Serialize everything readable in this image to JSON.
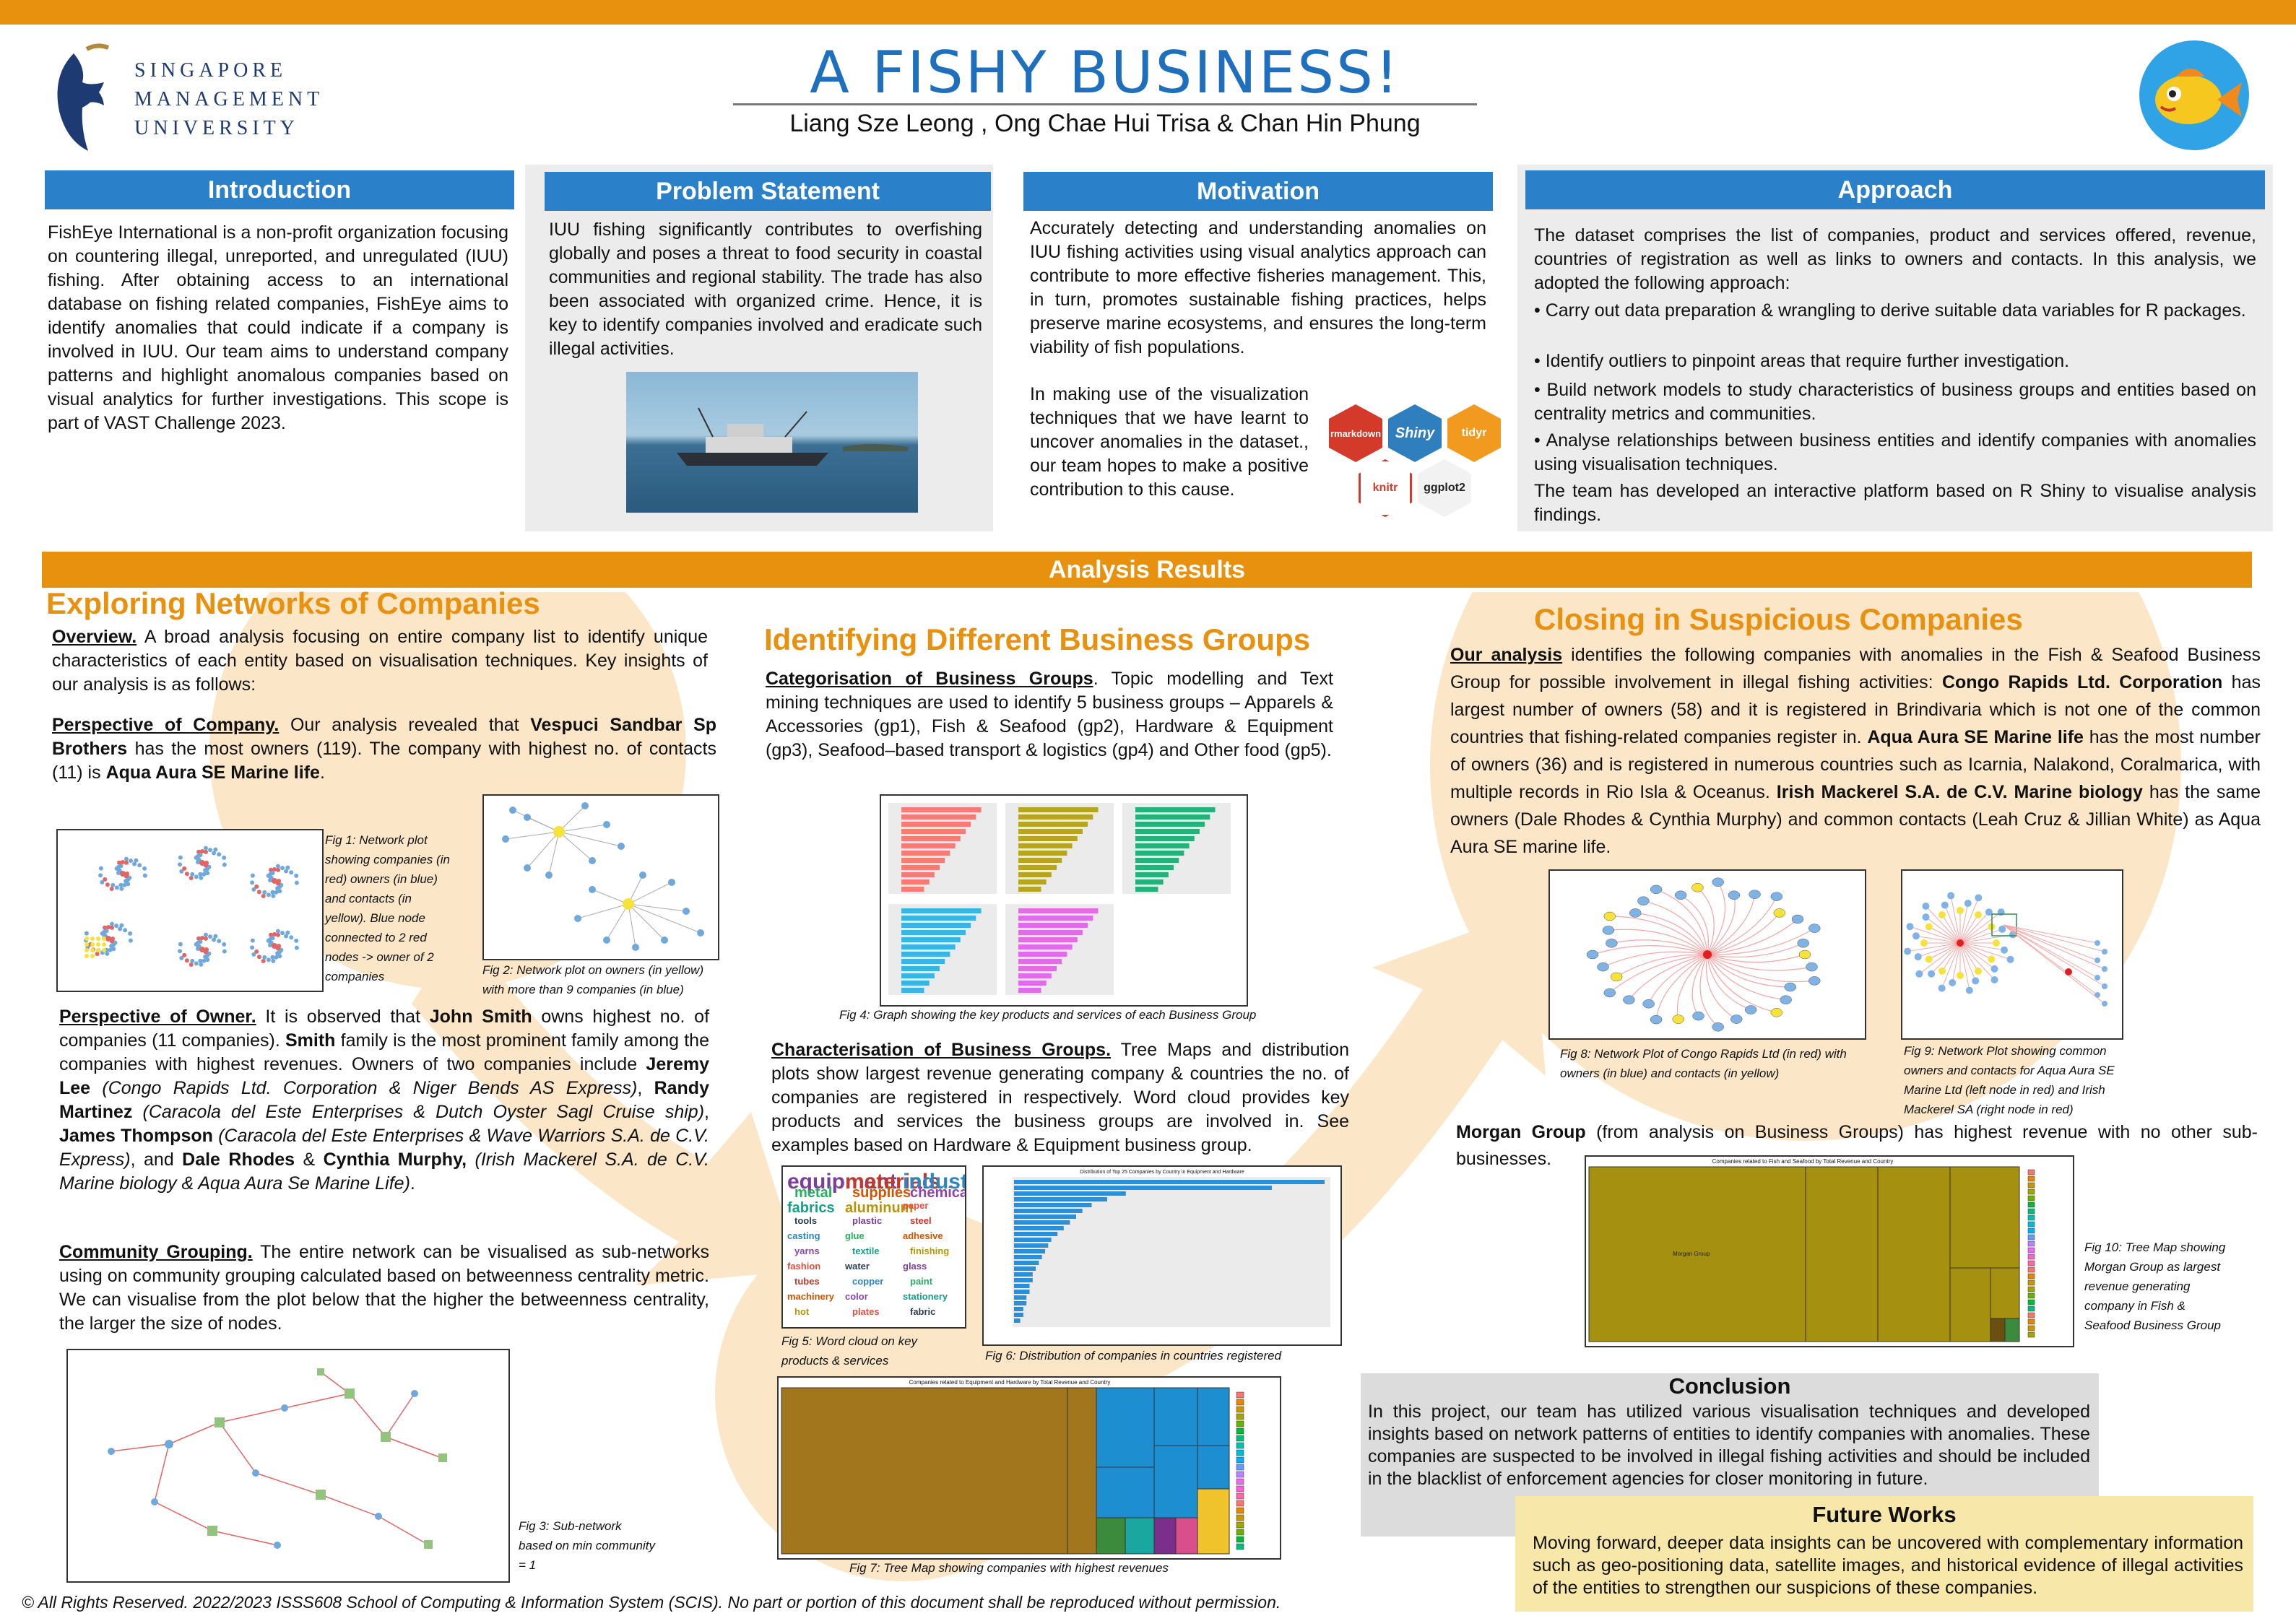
{
  "header": {
    "title": "A FISHY BUSINESS!",
    "authors": "Liang Sze Leong , Ong Chae Hui Trisa & Chan Hin Phung",
    "university_lines": [
      "SINGAPORE",
      "MANAGEMENT",
      "UNIVERSITY"
    ]
  },
  "introduction": {
    "heading": "Introduction",
    "text": "FishEye International is a non-profit organization focusing on countering illegal, unreported, and unregulated (IUU) fishing. After obtaining access to an international database on fishing related companies, FishEye aims to identify anomalies that could indicate if a company is involved in IUU. Our team aims to understand company patterns and highlight anomalous companies based on visual analytics for further investigations. This scope is part of VAST Challenge 2023."
  },
  "problem": {
    "heading": "Problem Statement",
    "text": "IUU fishing significantly contributes to overfishing globally and poses a threat to food security in coastal communities and regional stability. The trade has also been associated with organized crime. Hence, it is key to identify companies involved and eradicate such illegal activities."
  },
  "motivation": {
    "heading": "Motivation",
    "text1": "Accurately detecting and understanding anomalies on IUU fishing activities using visual analytics approach can contribute to more effective fisheries management. This, in turn, promotes sustainable fishing practices, helps preserve marine ecosystems, and ensures the long-term viability of fish populations.",
    "text2": "In making use of the visualization techniques that we have learnt to uncover anomalies in the dataset., our team hopes to make a positive contribution to this cause.",
    "tools": [
      "rmarkdown",
      "Shiny",
      "tidyr",
      "knitr",
      "ggplot2"
    ]
  },
  "approach": {
    "heading": "Approach",
    "intro": "The dataset comprises the list of companies, product and services offered, revenue, countries of registration as well as links to owners and contacts. In this analysis, we adopted the following approach:",
    "bullets": [
      "• Carry out data preparation & wrangling to derive suitable data variables for R packages.",
      "• Identify outliers to pinpoint areas that require further investigation.",
      "• Build network models to study characteristics of business groups and entities based on centrality metrics and communities.",
      "• Analyse relationships between business entities and identify companies with anomalies using visualisation techniques."
    ],
    "outro": "The team has developed an interactive platform based on R Shiny to visualise analysis findings."
  },
  "analysis": {
    "heading": "Analysis Results"
  },
  "exploring": {
    "heading": "Exploring Networks of Companies",
    "overview_label": "Overview.",
    "overview_text": " A broad analysis focusing on entire company list to identify unique characteristics of each entity based on visualisation techniques. Key insights of our analysis is as follows:",
    "company_label": "Perspective of Company.",
    "company_text1": " Our analysis revealed that ",
    "company_b1": "Vespuci Sandbar Sp Brothers",
    "company_text2": " has the most owners (119). The company with highest no. of contacts (11) is ",
    "company_b2": "Aqua Aura SE Marine life",
    "company_text3": ".",
    "fig1": "Fig 1: Network plot showing companies (in red) owners (in blue) and contacts (in yellow). Blue node connected to 2 red nodes -> owner of 2 companies",
    "fig2": "Fig 2: Network plot on owners (in yellow) with more than 9 companies (in blue)",
    "owner_label": "Perspective of Owner.",
    "owner_t1": " It is observed that ",
    "owner_b1": "John Smith",
    "owner_t2": " owns highest no. of companies (11 companies). ",
    "owner_b2": "Smith",
    "owner_t3": " family is the most prominent family among the companies with highest revenues. Owners of two companies include ",
    "owner_b3": "Jeremy Lee",
    "owner_i3": " (Congo Rapids Ltd. Corporation & Niger Bends AS Express)",
    "owner_t4": ", ",
    "owner_b4": "Randy Martinez",
    "owner_i4": " (Caracola del Este Enterprises & Dutch Oyster Sagl Cruise ship)",
    "owner_t5": ", ",
    "owner_b5": "James Thompson",
    "owner_i5": " (Caracola del Este Enterprises & Wave Warriors S.A. de C.V. Express)",
    "owner_t6": ", and ",
    "owner_b6": "Dale Rhodes",
    "owner_t7": " & ",
    "owner_b7": "Cynthia Murphy,",
    "owner_i7": " (Irish Mackerel S.A. de C.V. Marine biology & Aqua Aura Se Marine Life)",
    "owner_t8": ".",
    "community_label": "Community Grouping.",
    "community_text": " The entire network can be visualised as sub-networks using on community grouping calculated based on betweenness centrality metric. We can visualise from the plot below that the higher the betweenness centrality, the larger the size of nodes.",
    "fig3": "Fig 3: Sub-network based on min community = 1"
  },
  "groups": {
    "heading": "Identifying Different Business Groups",
    "cat_label": "Categorisation of Business Groups",
    "cat_text": ". Topic modelling and Text mining techniques are used to identify 5 business groups – Apparels & Accessories (gp1), Fish & Seafood (gp2), Hardware & Equipment (gp3), Seafood–based transport & logistics (gp4) and Other food (gp5).",
    "fig4": "Fig 4: Graph showing the key products and services of each Business Group",
    "char_label": "Characterisation of Business Groups.",
    "char_text": " Tree Maps and distribution plots show largest revenue generating company & countries the no. of companies are registered in respectively. Word cloud provides key products and services the business groups are involved in. See examples based on Hardware & Equipment business group.",
    "fig5": "Fig 5: Word cloud on key products & services",
    "fig6": "Fig 6: Distribution of companies in countries registered",
    "fig6_title": "Distribution of Top 25 Companies by Country in Equipment and Hardware",
    "fig7": "Fig 7: Tree Map showing companies with highest revenues",
    "fig7_title": "Companies related to Equipment and Hardware by Total Revenue and Country",
    "cloud_words": [
      "equipment",
      "materials",
      "industrial",
      "metal",
      "supplies",
      "chemicals",
      "fabrics",
      "aluminum",
      "paper",
      "tools",
      "plastic",
      "steel",
      "casting",
      "glue",
      "adhesive",
      "yarns",
      "textile",
      "finishing",
      "fashion",
      "water",
      "glass",
      "tubes",
      "copper",
      "paint",
      "machinery",
      "color",
      "stationery",
      "hot",
      "plates",
      "fabric"
    ]
  },
  "closing": {
    "heading": "Closing in Suspicious Companies",
    "label": "Our analysis",
    "t1": " identifies the following companies with anomalies in the Fish & Seafood Business Group for possible involvement in illegal fishing activities: ",
    "b1": "Congo Rapids Ltd. Corporation",
    "t2": " has largest number of owners (58) and it is registered in Brindivaria which is not one of the common countries  that fishing-related companies register in. ",
    "b2": "Aqua Aura SE Marine life",
    "t3": " has the most number of owners (36) and is registered in numerous countries such as Icarnia, Nalakond, Coralmarica, with multiple records in Rio Isla & Oceanus. ",
    "b3": "Irish Mackerel S.A. de C.V. Marine biology",
    "t4": " has the same owners (Dale Rhodes & Cynthia Murphy) and common contacts (Leah Cruz & Jillian White) as Aqua Aura SE marine life.",
    "fig8": "Fig 8: Network Plot of Congo Rapids Ltd (in red) with owners (in blue) and contacts (in yellow)",
    "fig9": "Fig 9: Network Plot showing common owners and contacts for Aqua Aura SE Marine Ltd (left node in red) and Irish Mackerel SA (right node in red)",
    "morgan_b": "Morgan Group",
    "morgan_t": " (from analysis on Business Groups) has highest revenue with no other sub-businesses.",
    "fig10": "Fig 10: Tree Map showing Morgan Group as largest revenue generating company in Fish & Seafood Business Group",
    "fig10_title": "Companies related to Fish and Seafood by Total Revenue and Country",
    "fig10_label": "Morgan Group"
  },
  "conclusion": {
    "heading": "Conclusion",
    "text": "In this project, our team has utilized various visualisation techniques and developed insights based on network patterns of entities to identify companies with anomalies. These companies are suspected to be involved in illegal fishing activities and should be included in the blacklist of enforcement agencies for closer monitoring in future."
  },
  "future": {
    "heading": "Future Works",
    "text": "Moving forward, deeper data insights can be uncovered with complementary information such as geo-positioning data, satellite images, and historical evidence of illegal activities of the entities to strengthen our suspicions of these companies."
  },
  "footer": {
    "text": "© All Rights Reserved. 2022/2023 ISSS608 School of Computing & Information System (SCIS). No part or portion of this document shall be reproduced without permission."
  },
  "colors": {
    "accent_orange": "#e8910e",
    "accent_blue": "#2a80c9",
    "title_blue": "#1f6fbf"
  }
}
